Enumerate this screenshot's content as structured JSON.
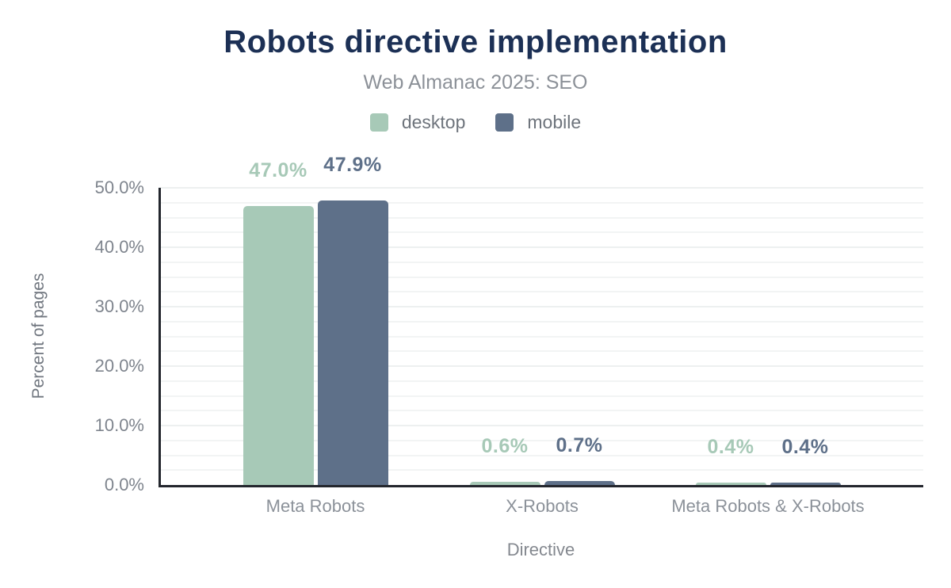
{
  "header": {
    "title": "Robots directive implementation",
    "subtitle": "Web Almanac 2025: SEO"
  },
  "colors": {
    "title": "#1c3055",
    "desktop": "#a7c9b7",
    "mobile": "#5e7089",
    "axis_line": "#23262d"
  },
  "chart_data": {
    "type": "bar",
    "title": "Robots directive implementation",
    "subtitle": "Web Almanac 2025: SEO",
    "categories": [
      "Meta Robots",
      "X-Robots",
      "Meta Robots & X-Robots"
    ],
    "series": [
      {
        "name": "desktop",
        "color": "#a7c9b7",
        "values": [
          47.0,
          0.6,
          0.4
        ],
        "value_labels": [
          "47.0%",
          "0.6%",
          "0.4%"
        ]
      },
      {
        "name": "mobile",
        "color": "#5e7089",
        "values": [
          47.9,
          0.7,
          0.4
        ],
        "value_labels": [
          "47.9%",
          "0.7%",
          "0.4%"
        ]
      }
    ],
    "xlabel": "Directive",
    "ylabel": "Percent of pages",
    "ylim": [
      0,
      50
    ],
    "yticks": [
      0,
      10,
      20,
      30,
      40,
      50
    ],
    "ytick_labels": [
      "0.0%",
      "10.0%",
      "20.0%",
      "30.0%",
      "40.0%",
      "50.0%"
    ],
    "minor_grid_step": 2.5,
    "grid": true,
    "legend_position": "top",
    "legend_entries": [
      "desktop",
      "mobile"
    ]
  }
}
